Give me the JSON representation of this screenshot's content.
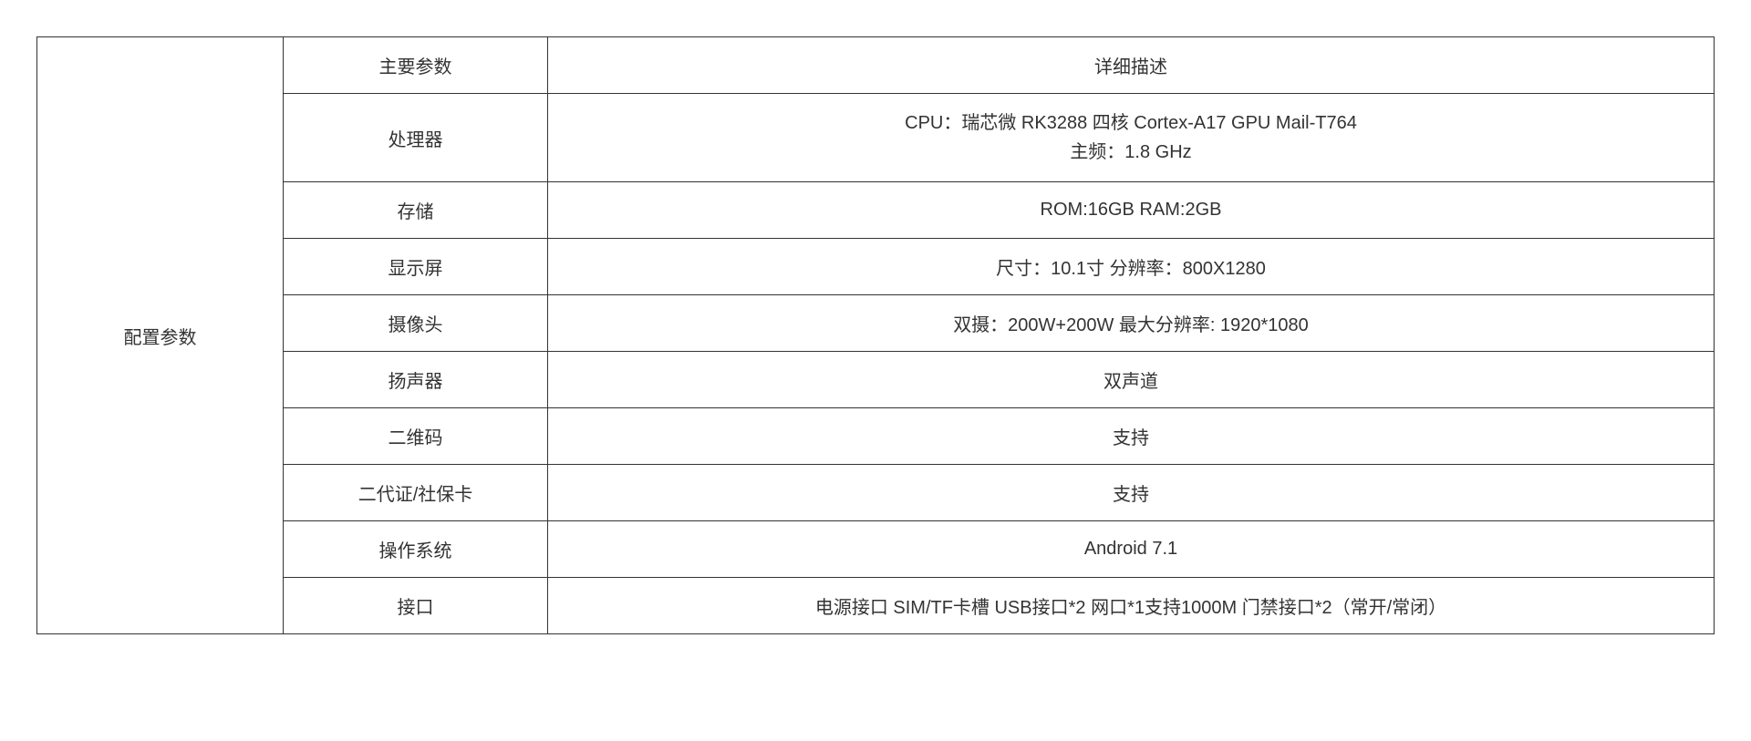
{
  "table": {
    "type": "table",
    "border_color": "#333333",
    "background_color": "#ffffff",
    "text_color": "#333333",
    "font_size": 20,
    "font_weight": 300,
    "column_widths": {
      "category": 270,
      "param": 290,
      "detail": "auto"
    },
    "category_label": "配置参数",
    "header": {
      "param_label": "主要参数",
      "detail_label": "详细描述"
    },
    "rows": [
      {
        "param": "处理器",
        "detail_line1": "CPU：瑞芯微 RK3288 四核 Cortex-A17 GPU Mail-T764",
        "detail_line2": "主频：1.8 GHz"
      },
      {
        "param": "存储",
        "detail": "ROM:16GB  RAM:2GB"
      },
      {
        "param": "显示屏",
        "detail": "尺寸：10.1寸   分辨率：800X1280"
      },
      {
        "param": "摄像头",
        "detail": "双摄：200W+200W   最大分辨率: 1920*1080"
      },
      {
        "param": "扬声器",
        "detail": "双声道"
      },
      {
        "param": "二维码",
        "detail": "支持"
      },
      {
        "param": "二代证/社保卡",
        "detail": "支持"
      },
      {
        "param": "操作系统",
        "detail": "Android 7.1"
      },
      {
        "param": "接口",
        "detail": "电源接口  SIM/TF卡槽  USB接口*2 网口*1支持1000M  门禁接口*2（常开/常闭）"
      }
    ]
  }
}
